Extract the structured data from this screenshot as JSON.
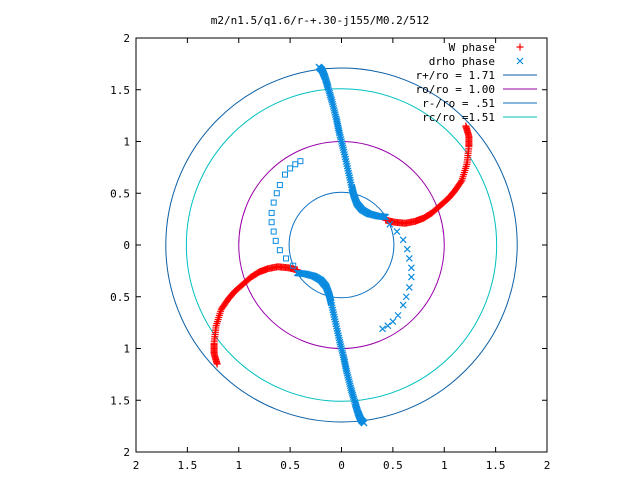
{
  "chart_data": {
    "type": "scatter",
    "title": "m2/n1.5/q1.6/r-+.30-j155/M0.2/512",
    "xlabel": "",
    "ylabel": "",
    "xlim": [
      -2,
      2
    ],
    "ylim": [
      -2,
      2
    ],
    "x_tick_labels": [
      "2",
      "1.5",
      "1",
      "0.5",
      "0",
      "0.5",
      "1",
      "1.5",
      "2"
    ],
    "y_tick_labels": [
      "2",
      "1.5",
      "1",
      "0.5",
      "0",
      "0.5",
      "1",
      "1.5",
      "2"
    ],
    "grid": false,
    "legend_position": "top-right",
    "circles": [
      {
        "name": "r+/ro = 1.71",
        "radius": 1.71,
        "color": "#0b5fa5"
      },
      {
        "name": "ro/ro = 1.00",
        "radius": 1.0,
        "color": "#9900aa"
      },
      {
        "name": "r-/ro = .51",
        "radius": 0.51,
        "color": "#0b6fc0"
      },
      {
        "name": "rc/ro =1.51",
        "radius": 1.51,
        "color": "#00c0c0"
      }
    ],
    "series": [
      {
        "name": "W phase",
        "marker": "+",
        "color": "#ff0000",
        "arms": [
          [
            [
              0.43,
              0.24
            ],
            [
              0.52,
              0.22
            ],
            [
              0.62,
              0.21
            ],
            [
              0.72,
              0.23
            ],
            [
              0.8,
              0.26
            ],
            [
              0.88,
              0.31
            ],
            [
              0.96,
              0.38
            ],
            [
              1.04,
              0.45
            ],
            [
              1.1,
              0.52
            ],
            [
              1.17,
              0.62
            ],
            [
              1.22,
              0.78
            ],
            [
              1.24,
              0.95
            ],
            [
              1.24,
              1.05
            ],
            [
              1.21,
              1.15
            ]
          ],
          [
            [
              -0.43,
              -0.24
            ],
            [
              -0.52,
              -0.22
            ],
            [
              -0.62,
              -0.21
            ],
            [
              -0.72,
              -0.23
            ],
            [
              -0.8,
              -0.26
            ],
            [
              -0.88,
              -0.31
            ],
            [
              -0.96,
              -0.38
            ],
            [
              -1.04,
              -0.45
            ],
            [
              -1.1,
              -0.52
            ],
            [
              -1.17,
              -0.62
            ],
            [
              -1.22,
              -0.78
            ],
            [
              -1.24,
              -0.95
            ],
            [
              -1.24,
              -1.05
            ],
            [
              -1.21,
              -1.15
            ]
          ]
        ]
      },
      {
        "name": "drho phase",
        "marker": "x",
        "color": "#0a8be0",
        "arms": [
          [
            [
              -0.43,
              -0.27
            ],
            [
              -0.35,
              -0.28
            ],
            [
              -0.27,
              -0.3
            ],
            [
              -0.2,
              -0.34
            ],
            [
              -0.15,
              -0.4
            ],
            [
              -0.12,
              -0.48
            ],
            [
              -0.1,
              -0.56
            ],
            [
              -0.06,
              -0.74
            ],
            [
              -0.02,
              -0.92
            ],
            [
              0.02,
              -1.08
            ],
            [
              0.05,
              -1.22
            ],
            [
              0.09,
              -1.38
            ],
            [
              0.13,
              -1.52
            ],
            [
              0.16,
              -1.62
            ],
            [
              0.19,
              -1.69
            ],
            [
              0.22,
              -1.72
            ]
          ],
          [
            [
              0.43,
              0.27
            ],
            [
              0.35,
              0.28
            ],
            [
              0.27,
              0.3
            ],
            [
              0.2,
              0.34
            ],
            [
              0.15,
              0.4
            ],
            [
              0.12,
              0.48
            ],
            [
              0.1,
              0.56
            ],
            [
              0.06,
              0.74
            ],
            [
              0.02,
              0.92
            ],
            [
              -0.02,
              1.08
            ],
            [
              -0.05,
              1.22
            ],
            [
              -0.09,
              1.38
            ],
            [
              -0.13,
              1.52
            ],
            [
              -0.16,
              1.62
            ],
            [
              -0.19,
              1.69
            ],
            [
              -0.22,
              1.72
            ]
          ]
        ],
        "sparse": [
          [
            -0.47,
            -0.2
          ],
          [
            -0.54,
            -0.13
          ],
          [
            -0.6,
            -0.05
          ],
          [
            -0.64,
            0.04
          ],
          [
            -0.66,
            0.13
          ],
          [
            -0.68,
            0.22
          ],
          [
            -0.68,
            0.31
          ],
          [
            -0.66,
            0.41
          ],
          [
            -0.63,
            0.5
          ],
          [
            -0.6,
            0.58
          ],
          [
            -0.55,
            0.68
          ],
          [
            -0.5,
            0.74
          ],
          [
            -0.45,
            0.78
          ],
          [
            -0.4,
            0.81
          ],
          [
            0.47,
            0.2
          ],
          [
            0.54,
            0.13
          ],
          [
            0.6,
            0.05
          ],
          [
            0.64,
            -0.04
          ],
          [
            0.66,
            -0.13
          ],
          [
            0.68,
            -0.22
          ],
          [
            0.68,
            -0.31
          ],
          [
            0.66,
            -0.41
          ],
          [
            0.63,
            -0.5
          ],
          [
            0.6,
            -0.58
          ],
          [
            0.55,
            -0.68
          ],
          [
            0.5,
            -0.74
          ],
          [
            0.45,
            -0.78
          ],
          [
            0.4,
            -0.81
          ]
        ]
      }
    ]
  }
}
